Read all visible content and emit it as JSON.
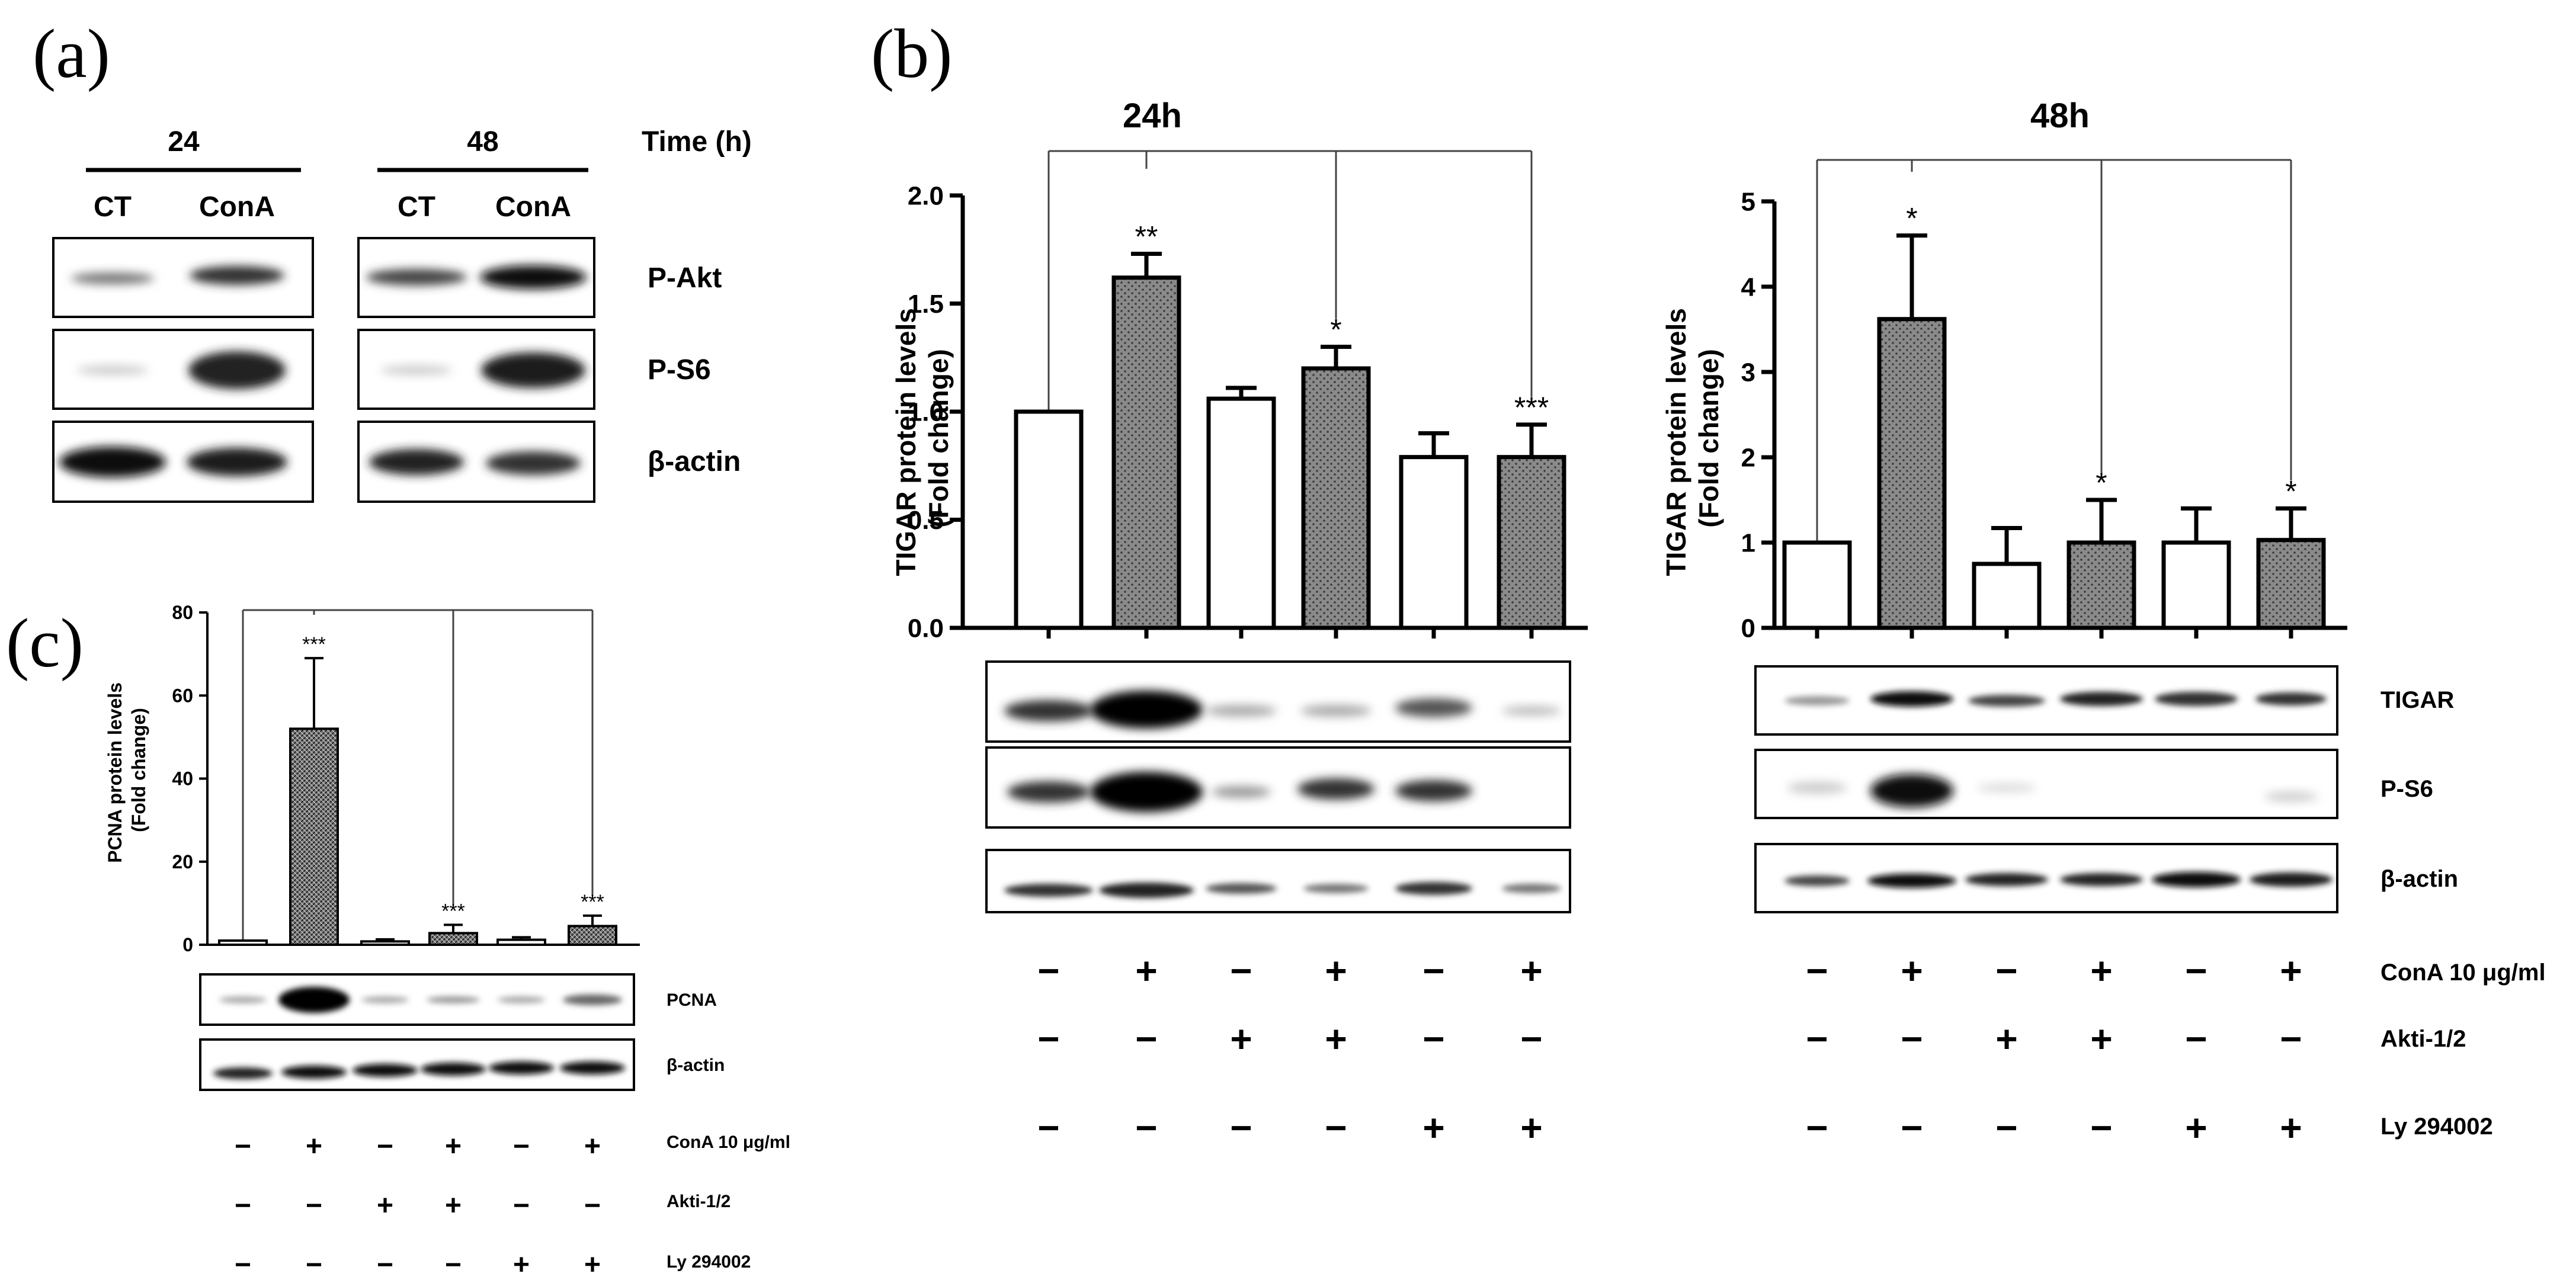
{
  "panel_a": {
    "label": "(a)",
    "time_values": [
      "24",
      "48"
    ],
    "time_label": "Time (h)",
    "lane_labels": [
      "CT",
      "ConA",
      "CT",
      "ConA"
    ],
    "blot_labels": [
      "P-Akt",
      "P-S6",
      "β-actin"
    ]
  },
  "panel_b": {
    "label": "(b)",
    "blot_labels_24h": [],
    "blot_labels_48h": [
      "TIGAR",
      "P-S6",
      "β-actin"
    ]
  },
  "panel_c": {
    "label": "(c)",
    "blot_labels": [
      "PCNA",
      "β-actin"
    ]
  },
  "treatments": {
    "row_labels": [
      "ConA 10 μg/ml",
      "Akti-1/2",
      "Ly 294002"
    ],
    "signs": [
      [
        "−",
        "+",
        "−",
        "+",
        "−",
        "+"
      ],
      [
        "−",
        "−",
        "+",
        "+",
        "−",
        "−"
      ],
      [
        "−",
        "−",
        "−",
        "−",
        "+",
        "+"
      ]
    ]
  },
  "chart_data": [
    {
      "id": "b24",
      "type": "bar",
      "title": "24h",
      "ylabel": "TIGAR protein levels (Fold change)",
      "ylim": [
        0,
        2.0
      ],
      "yticks": [
        "0.0",
        "0.5",
        "1.0",
        "1.5",
        "2.0"
      ],
      "values": [
        1.0,
        1.62,
        1.06,
        1.2,
        0.79,
        0.79
      ],
      "errors": [
        0,
        0.11,
        0.05,
        0.1,
        0.11,
        0.15
      ],
      "significance": [
        "",
        "**",
        "",
        "*",
        "",
        "***"
      ],
      "fill": [
        "white",
        "dotted",
        "white",
        "dotted",
        "white",
        "dotted"
      ]
    },
    {
      "id": "b48",
      "type": "bar",
      "title": "48h",
      "ylabel": "TIGAR protein levels (Fold change)",
      "ylim": [
        0,
        5
      ],
      "yticks": [
        "0",
        "1",
        "2",
        "3",
        "4",
        "5"
      ],
      "values": [
        1.0,
        3.62,
        0.75,
        1.0,
        1.0,
        1.03
      ],
      "errors": [
        0,
        0.98,
        0.42,
        0.5,
        0.4,
        0.37
      ],
      "significance": [
        "",
        "*",
        "",
        "*",
        "",
        "*"
      ],
      "fill": [
        "white",
        "dotted",
        "white",
        "dotted",
        "white",
        "dotted"
      ]
    },
    {
      "id": "c",
      "type": "bar",
      "title": "",
      "ylabel": "PCNA protein levels (Fold change)",
      "ylim": [
        0,
        80
      ],
      "yticks": [
        "0",
        "20",
        "40",
        "60",
        "80"
      ],
      "values": [
        1,
        52,
        0.8,
        2.8,
        1.2,
        4.5
      ],
      "errors": [
        0,
        17,
        0.5,
        2,
        0.6,
        2.5
      ],
      "significance": [
        "",
        "***",
        "",
        "***",
        "",
        "***"
      ],
      "fill": [
        "white",
        "hatched",
        "white",
        "hatched",
        "white",
        "hatched"
      ]
    }
  ]
}
